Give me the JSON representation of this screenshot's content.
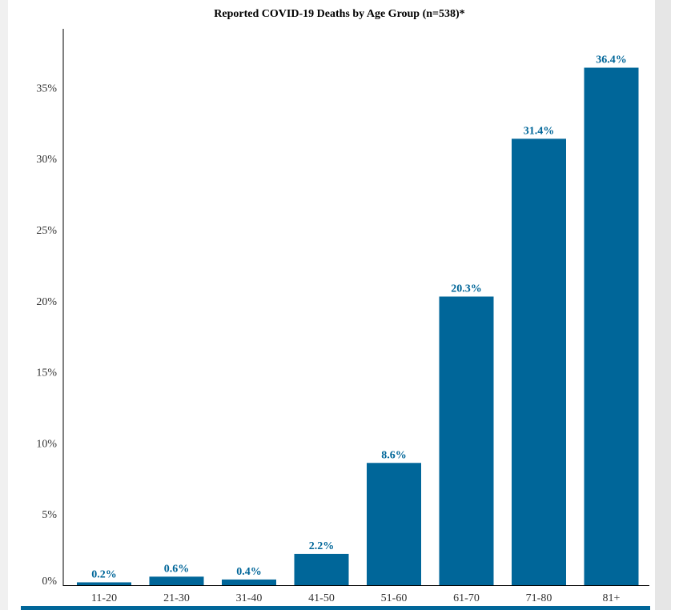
{
  "chart_data": {
    "type": "bar",
    "title": "Reported COVID-19 Deaths by Age Group (n=538)*",
    "categories": [
      "11-20",
      "21-30",
      "31-40",
      "41-50",
      "51-60",
      "61-70",
      "71-80",
      "81+"
    ],
    "values": [
      0.2,
      0.6,
      0.4,
      2.2,
      8.6,
      20.3,
      31.4,
      36.4
    ],
    "value_labels": [
      "0.2%",
      "0.6%",
      "0.4%",
      "2.2%",
      "8.6%",
      "20.3%",
      "31.4%",
      "36.4%"
    ],
    "yticks": [
      0,
      5,
      10,
      15,
      20,
      25,
      30,
      35
    ],
    "ytick_labels": [
      "0%",
      "5%",
      "10%",
      "15%",
      "20%",
      "25%",
      "30%",
      "35%"
    ],
    "ylim": [
      0,
      39
    ],
    "xlabel": "",
    "ylabel": "",
    "grid": false,
    "bar_color": "#006699",
    "label_color": "#006699"
  }
}
